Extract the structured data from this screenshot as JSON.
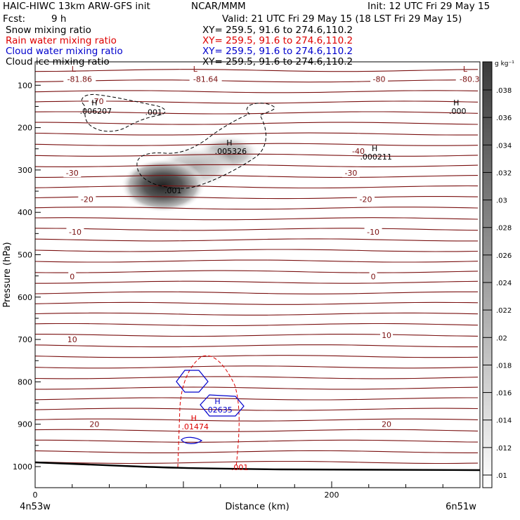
{
  "header": {
    "model": "HAIC-HIWC 13km ARW-GFS init",
    "org": "NCAR/MMM",
    "init": "Init: 12 UTC Fri 29 May 15",
    "fcst_label": "Fcst:",
    "fcst_value": "9 h",
    "valid": "Valid: 21 UTC Fri 29 May 15 (18 LST Fri 29 May 15)"
  },
  "fields": [
    {
      "name": "Snow mixing ratio",
      "xy": "XY= 259.5, 91.6 to 274.6,110.2",
      "color": "#000000"
    },
    {
      "name": "Rain water mixing ratio",
      "xy": "XY= 259.5, 91.6 to 274.6,110.2",
      "color": "#dd0000"
    },
    {
      "name": "Cloud water mixing ratio",
      "xy": "XY= 259.5, 91.6 to 274.6,110.2",
      "color": "#0000cc"
    },
    {
      "name": "Cloud ice mixing ratio",
      "xy": "XY= 259.5, 91.6 to 274.6,110.2",
      "color": "#000000"
    }
  ],
  "chart_data": {
    "type": "contour",
    "xlabel": "Distance (km)",
    "ylabel": "Pressure (hPa)",
    "xlim": [
      0,
      300
    ],
    "ylim": [
      1050,
      50
    ],
    "x_ticks": [
      0,
      200
    ],
    "y_ticks": [
      100,
      200,
      300,
      400,
      500,
      600,
      700,
      800,
      900,
      1000
    ],
    "x_endpoints": {
      "left": "4n53w",
      "right": "6n51w"
    },
    "colorbar": {
      "unit": "g kg⁻¹",
      "ticks": [
        ".01",
        ".012",
        ".014",
        ".016",
        ".018",
        ".02",
        ".022",
        ".024",
        ".026",
        ".028",
        ".03",
        ".032",
        ".034",
        ".036",
        ".038"
      ]
    },
    "temperature_labels": [
      {
        "text": "-81.86",
        "x": 30,
        "p": 85
      },
      {
        "text": "-81.64",
        "x": 115,
        "p": 85
      },
      {
        "text": "-80",
        "x": 232,
        "p": 85
      },
      {
        "text": "-80.3",
        "x": 293,
        "p": 85
      },
      {
        "text": "-70",
        "x": 42,
        "p": 138
      },
      {
        "text": "-40",
        "x": 218,
        "p": 255
      },
      {
        "text": "-30",
        "x": 25,
        "p": 307
      },
      {
        "text": "-30",
        "x": 213,
        "p": 307
      },
      {
        "text": "-20",
        "x": 35,
        "p": 369
      },
      {
        "text": "-20",
        "x": 223,
        "p": 369
      },
      {
        "text": "-10",
        "x": 27,
        "p": 446
      },
      {
        "text": "-10",
        "x": 228,
        "p": 446
      },
      {
        "text": "0",
        "x": 25,
        "p": 551
      },
      {
        "text": "0",
        "x": 228,
        "p": 551
      },
      {
        "text": "10",
        "x": 25,
        "p": 700
      },
      {
        "text": "10",
        "x": 237,
        "p": 690
      },
      {
        "text": "20",
        "x": 40,
        "p": 900
      },
      {
        "text": "20",
        "x": 237,
        "p": 900
      }
    ],
    "extrema": [
      {
        "mark": "L",
        "value": "",
        "x": 26,
        "p": 68,
        "color": "#8b1a1a"
      },
      {
        "mark": "L",
        "value": "",
        "x": 108,
        "p": 68,
        "color": "#8b1a1a"
      },
      {
        "mark": "L",
        "value": "",
        "x": 290,
        "p": 68,
        "color": "#8b1a1a"
      },
      {
        "mark": "H",
        "value": ".006207",
        "x": 40,
        "p": 148,
        "color": "#000000"
      },
      {
        "mark": "H",
        "value": ".000",
        "x": 284,
        "p": 148,
        "color": "#000000"
      },
      {
        "mark": "H",
        "value": ".005326",
        "x": 131,
        "p": 242,
        "color": "#000000"
      },
      {
        "mark": "H",
        "value": ".000211",
        "x": 229,
        "p": 255,
        "color": "#000000"
      },
      {
        "mark": "H",
        "value": ".02635",
        "x": 123,
        "p": 852,
        "color": "#0000cc"
      },
      {
        "mark": "H",
        "value": ".01474",
        "x": 107,
        "p": 892,
        "color": "#dd0000"
      }
    ],
    "contour_labels": [
      {
        "text": ".001",
        "x": 80,
        "p": 163,
        "color": "#000000"
      },
      {
        "text": ".001",
        "x": 93,
        "p": 348,
        "color": "#000000"
      },
      {
        "text": ".001",
        "x": 138,
        "p": 1002,
        "color": "#dd0000"
      }
    ]
  }
}
